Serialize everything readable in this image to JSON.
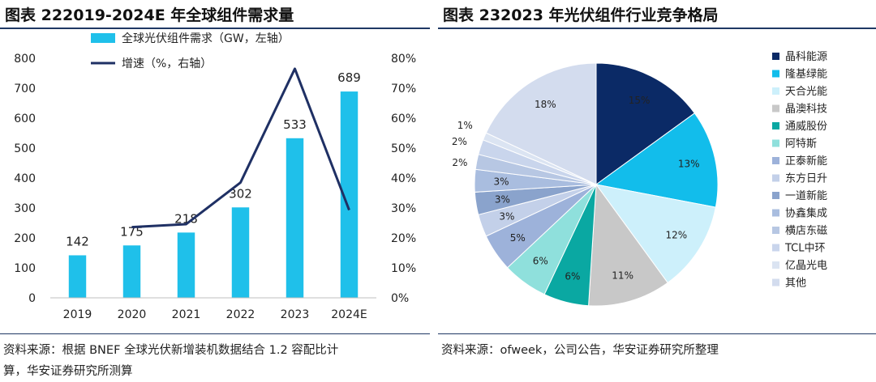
{
  "left": {
    "title": "图表 222019-2024E 年全球组件需求量",
    "source_line1": "资料来源：根据 BNEF 全球光伏新增装机数据结合 1.2 容配比计",
    "source_line2": "算，华安证券研究所测算"
  },
  "right": {
    "title": "图表 232023 年光伏组件行业竞争格局",
    "source": "资料来源：ofweek，公司公告，华安证券研究所整理"
  },
  "chart_data": [
    {
      "type": "bar",
      "categories": [
        "2019",
        "2020",
        "2021",
        "2022",
        "2023",
        "2024E"
      ],
      "series": [
        {
          "name": "全球光伏组件需求（GW，左轴）",
          "type": "bar",
          "axis": "left",
          "color": "#1fc0ea",
          "values": [
            142,
            175,
            218,
            302,
            533,
            689
          ]
        },
        {
          "name": "增速（%，右轴）",
          "type": "line",
          "axis": "right",
          "color": "#1f3064",
          "values": [
            null,
            23.6,
            24.6,
            38.5,
            76.5,
            29.3
          ]
        }
      ],
      "y_left": {
        "min": 0,
        "max": 800,
        "ticks": [
          "0",
          "100",
          "200",
          "300",
          "400",
          "500",
          "600",
          "700",
          "800"
        ]
      },
      "y_right": {
        "min": 0,
        "max": 80,
        "ticks": [
          "0%",
          "10%",
          "20%",
          "30%",
          "40%",
          "50%",
          "60%",
          "70%",
          "80%"
        ]
      },
      "title": "",
      "xlabel": "",
      "ylabel": "",
      "legend_placement": "top-left",
      "grid": false
    },
    {
      "type": "pie",
      "labels": [
        "晶科能源",
        "隆基绿能",
        "天合光能",
        "晶澳科技",
        "通威股份",
        "阿特斯",
        "正泰新能",
        "东方日升",
        "一道新能",
        "协鑫集成",
        "横店东磁",
        "TCL中环",
        "亿晶光电",
        "其他"
      ],
      "values": [
        15,
        13,
        12,
        11,
        6,
        6,
        5,
        3,
        3,
        3,
        2,
        2,
        1,
        18
      ],
      "value_labels": [
        "15%",
        "13%",
        "12%",
        "11%",
        "6%",
        "6%",
        "5%",
        "3%",
        "3%",
        "3%",
        "2%",
        "2%",
        "1%",
        "18%"
      ],
      "colors": [
        "#0b2a66",
        "#12bdeb",
        "#cdf0fb",
        "#c8c8c8",
        "#0aa8a2",
        "#8fe0dc",
        "#9db2da",
        "#c3d0e9",
        "#8aa3cc",
        "#a9bddf",
        "#b7c7e3",
        "#c9d5ec",
        "#dbe4f2",
        "#d3dcee"
      ],
      "legend_placement": "right",
      "title": ""
    }
  ]
}
